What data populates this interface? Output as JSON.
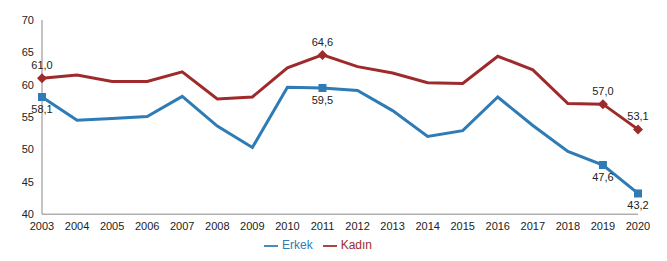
{
  "chart_data": {
    "type": "line",
    "categories": [
      "2003",
      "2004",
      "2005",
      "2006",
      "2007",
      "2008",
      "2009",
      "2010",
      "2011",
      "2012",
      "2013",
      "2014",
      "2015",
      "2016",
      "2017",
      "2018",
      "2019",
      "2020"
    ],
    "series": [
      {
        "name": "Erkek",
        "color": "#2e7bb5",
        "marker": "square",
        "values": [
          58.1,
          54.5,
          54.8,
          55.1,
          58.2,
          53.6,
          50.3,
          59.6,
          59.5,
          59.1,
          56.0,
          52.0,
          52.9,
          58.1,
          53.7,
          49.7,
          47.6,
          43.2
        ],
        "value_labels": [
          "58,1",
          null,
          null,
          null,
          null,
          null,
          null,
          null,
          "59,5",
          null,
          null,
          null,
          null,
          null,
          null,
          null,
          "47,6",
          "43,2"
        ]
      },
      {
        "name": "Kadın",
        "color": "#9e2a2b",
        "marker": "diamond",
        "values": [
          61.0,
          61.5,
          60.5,
          60.5,
          62.0,
          57.8,
          58.1,
          62.6,
          64.6,
          62.8,
          61.8,
          60.3,
          60.2,
          64.4,
          62.3,
          57.1,
          57.0,
          53.1
        ],
        "value_labels": [
          "61,0",
          null,
          null,
          null,
          null,
          null,
          null,
          null,
          "64,6",
          null,
          null,
          null,
          null,
          null,
          null,
          null,
          "57,0",
          "53,1"
        ]
      }
    ],
    "ylim": [
      40,
      70
    ],
    "yticks": [
      40,
      45,
      50,
      55,
      60,
      65,
      70
    ],
    "grid": false,
    "legend": "bottom",
    "data_labels": true
  }
}
